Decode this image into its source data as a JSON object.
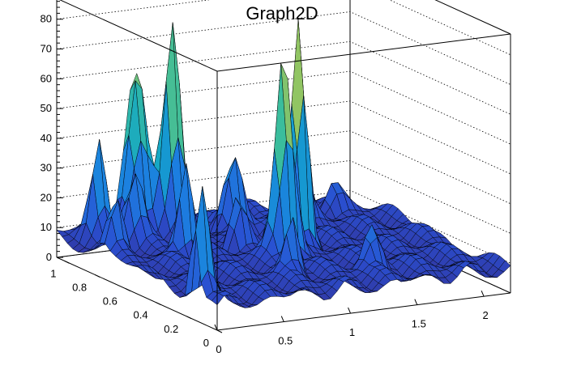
{
  "chart_data": {
    "type": "surface",
    "title": "Graph2D",
    "xlabel": "",
    "ylabel": "",
    "zlabel": "",
    "xlim": [
      0,
      2.2
    ],
    "ylim": [
      0,
      1.05
    ],
    "zlim": [
      0,
      87
    ],
    "x_ticks": [
      "0",
      "0.5",
      "1",
      "1.5",
      "2"
    ],
    "y_ticks": [
      "0",
      "0.2",
      "0.4",
      "0.6",
      "0.8",
      "1"
    ],
    "z_ticks": [
      "0",
      "10",
      "20",
      "30",
      "40",
      "50",
      "60",
      "70",
      "80"
    ],
    "grid": true,
    "colormap": [
      "#352a87",
      "#2a4fd1",
      "#1c7fe0",
      "#12a6c8",
      "#3bbd9c",
      "#9fc65a",
      "#f0c52a",
      "#f9fb0e"
    ],
    "baseline_height": 6,
    "peaks": [
      {
        "x": 1.25,
        "y": 0.55,
        "z": 80,
        "width": 0.05
      },
      {
        "x": 1.02,
        "y": 0.45,
        "z": 72,
        "width": 0.06
      },
      {
        "x": 0.75,
        "y": 0.95,
        "z": 68,
        "width": 0.06
      },
      {
        "x": 0.6,
        "y": 1.05,
        "z": 45,
        "width": 0.07
      },
      {
        "x": 0.05,
        "y": 0.15,
        "z": 40,
        "width": 0.05
      },
      {
        "x": 0.45,
        "y": 0.6,
        "z": 35,
        "width": 0.05
      },
      {
        "x": 1.55,
        "y": 0.85,
        "z": 32,
        "width": 0.07
      },
      {
        "x": 0.2,
        "y": 0.95,
        "z": 30,
        "width": 0.05
      },
      {
        "x": 0.55,
        "y": 1.0,
        "z": 28,
        "width": 0.06
      },
      {
        "x": 0.35,
        "y": 0.85,
        "z": 22,
        "width": 0.06
      },
      {
        "x": 0.1,
        "y": 0.75,
        "z": 18,
        "width": 0.05
      },
      {
        "x": 0.85,
        "y": 0.25,
        "z": 20,
        "width": 0.05
      },
      {
        "x": 1.4,
        "y": 0.2,
        "z": 15,
        "width": 0.06
      },
      {
        "x": 1.9,
        "y": 0.9,
        "z": 10,
        "width": 0.06
      },
      {
        "x": 1.1,
        "y": 0.85,
        "z": 25,
        "width": 0.06
      },
      {
        "x": 0.9,
        "y": 0.65,
        "z": 18,
        "width": 0.05
      }
    ]
  }
}
